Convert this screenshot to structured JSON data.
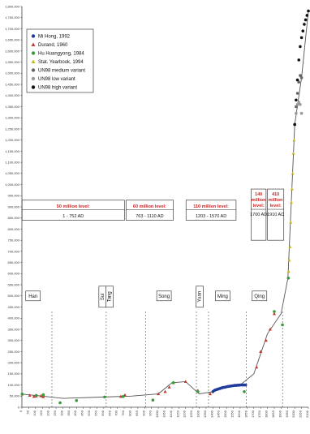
{
  "chart_data": {
    "type": "scatter",
    "x_ticks": [
      "0",
      "50",
      "100",
      "150",
      "200",
      "250",
      "300",
      "350",
      "400",
      "450",
      "500",
      "550",
      "600",
      "650",
      "700",
      "750",
      "800",
      "850",
      "900",
      "950",
      "1000",
      "1050",
      "1100",
      "1150",
      "1200",
      "1250",
      "1300",
      "1350",
      "1400",
      "1450",
      "1500",
      "1550",
      "1600",
      "1650",
      "1700",
      "1750",
      "1800",
      "1850",
      "1900",
      "1950",
      "2000",
      "2050",
      "2100"
    ],
    "xlim": [
      0,
      2100
    ],
    "ylim": [
      0,
      1800000
    ],
    "y_ticks": [
      "0",
      "50,000",
      "100,000",
      "150,000",
      "200,000",
      "250,000",
      "300,000",
      "350,000",
      "400,000",
      "450,000",
      "500,000",
      "550,000",
      "600,000",
      "650,000",
      "700,000",
      "750,000",
      "800,000",
      "850,000",
      "900,000",
      "950,000",
      "1,000,000",
      "1,050,000",
      "1,100,000",
      "1,150,000",
      "1,200,000",
      "1,250,000",
      "1,300,000",
      "1,350,000",
      "1,400,000",
      "1,450,000",
      "1,500,000",
      "1,550,000",
      "1,600,000",
      "1,650,000",
      "1,700,000",
      "1,750,000",
      "1,800,000"
    ],
    "grid": false,
    "legend_position": "top-left",
    "legend": [
      {
        "label": "Mi Hong, 1992",
        "marker": "circle",
        "color": "#1f3b9c"
      },
      {
        "label": "Durand, 1960",
        "marker": "triangle",
        "color": "#c0392b"
      },
      {
        "label": "Hu Huangyong, 1984",
        "marker": "circle",
        "color": "#3a9a3a"
      },
      {
        "label": "Stat. Yearbook, 1994",
        "marker": "triangle",
        "color": "#c8b820"
      },
      {
        "label": "UN98 medium variant",
        "marker": "circle",
        "color": "#666666"
      },
      {
        "label": "UN98 low variant",
        "marker": "circle",
        "color": "#999999"
      },
      {
        "label": "UN98 high variant",
        "marker": "circle",
        "color": "#111111"
      }
    ],
    "series": [
      {
        "name": "Mi Hong, 1992",
        "color": "#1f3b9c",
        "x": [
          1400,
          1410,
          1420,
          1430,
          1440,
          1450,
          1460,
          1470,
          1480,
          1490,
          1500,
          1510,
          1520,
          1530,
          1540,
          1550,
          1560,
          1570,
          1580,
          1590,
          1600,
          1610,
          1620,
          1630,
          1640
        ],
        "y": [
          70000,
          75000,
          78000,
          80000,
          82000,
          84000,
          86000,
          88000,
          89000,
          90000,
          92000,
          93000,
          94000,
          95000,
          96000,
          97000,
          98000,
          98000,
          99000,
          99000,
          100000,
          100000,
          100000,
          100000,
          100000
        ]
      },
      {
        "name": "Durand, 1960",
        "color": "#c0392b",
        "x": [
          2,
          57,
          88,
          105,
          140,
          156,
          725,
          755,
          1000,
          1050,
          1080,
          1110,
          1200,
          1290,
          1380,
          1720,
          1750,
          1790,
          1820,
          1850
        ],
        "y": [
          59000,
          53000,
          48000,
          50000,
          51000,
          47000,
          48000,
          55000,
          60000,
          70000,
          90000,
          110000,
          115000,
          75000,
          60000,
          180000,
          250000,
          300000,
          350000,
          420000
        ]
      },
      {
        "name": "Hu Huangyong, 1984",
        "color": "#3a9a3a",
        "x": [
          2,
          105,
          157,
          280,
          400,
          606,
          742,
          960,
          1110,
          1290,
          1630,
          1850,
          1910,
          1953
        ],
        "y": [
          59000,
          53000,
          56000,
          20000,
          30000,
          46000,
          48000,
          32000,
          110000,
          70000,
          70000,
          430000,
          370000,
          580000
        ]
      },
      {
        "name": "Stat. Yearbook, 1994",
        "color": "#c8b820",
        "x": [
          1955,
          1960,
          1965,
          1970,
          1975,
          1980,
          1985,
          1990,
          1995
        ],
        "y": [
          610000,
          660000,
          720000,
          830000,
          920000,
          980000,
          1050000,
          1140000,
          1200000
        ]
      },
      {
        "name": "UN98 medium variant",
        "color": "#666666",
        "x": [
          2000,
          2010,
          2020,
          2030,
          2040,
          2050
        ],
        "y": [
          1270000,
          1350000,
          1410000,
          1460000,
          1490000,
          1480000
        ]
      },
      {
        "name": "UN98 low variant",
        "color": "#999999",
        "x": [
          2000,
          2010,
          2020,
          2030,
          2040,
          2050
        ],
        "y": [
          1270000,
          1320000,
          1360000,
          1370000,
          1360000,
          1320000
        ]
      },
      {
        "name": "UN98 high variant",
        "color": "#111111",
        "x": [
          2000,
          2010,
          2020,
          2030,
          2040,
          2050,
          2060,
          2070,
          2080,
          2090,
          2100
        ],
        "y": [
          1270000,
          1380000,
          1470000,
          1560000,
          1620000,
          1660000,
          1690000,
          1720000,
          1740000,
          1760000,
          1780000
        ]
      }
    ],
    "trend_line": {
      "x": [
        0,
        150,
        300,
        600,
        800,
        1000,
        1100,
        1200,
        1300,
        1400,
        1500,
        1600,
        1700,
        1800,
        1900,
        1950,
        2000,
        2050,
        2100
      ],
      "y": [
        59000,
        50000,
        40000,
        46000,
        50000,
        60000,
        110000,
        115000,
        60000,
        70000,
        90000,
        100000,
        150000,
        330000,
        420000,
        580000,
        1270000,
        1480000,
        1780000
      ]
    },
    "level_bands": [
      {
        "title": "50 million level:",
        "range": "1 - 752 AD",
        "x_start": 1,
        "x_end": 752
      },
      {
        "title": "60 million level:",
        "range": "763 - 1110 AD",
        "x_start": 763,
        "x_end": 1110
      },
      {
        "title": "110 million level:",
        "range": "1203 - 1570 AD",
        "x_start": 1203,
        "x_end": 1570
      },
      {
        "title": "140 million level:",
        "range": "1700 AD",
        "x_start": 1680,
        "x_end": 1790
      },
      {
        "title": "410 million level:",
        "range": "1910 AD",
        "x_start": 1800,
        "x_end": 1920
      }
    ],
    "dynasties": [
      {
        "label": "Han",
        "x": 40,
        "boundary": 220,
        "vertical": false
      },
      {
        "label": "Sui",
        "x": 588,
        "boundary": 618,
        "vertical": true
      },
      {
        "label": "Tang",
        "x": 640,
        "boundary": 907,
        "vertical": true
      },
      {
        "label": "Song",
        "x": 1000,
        "boundary": 1279,
        "vertical": false
      },
      {
        "label": "Yuan",
        "x": 1300,
        "boundary": 1368,
        "vertical": true
      },
      {
        "label": "Ming",
        "x": 1430,
        "boundary": 1644,
        "vertical": false
      },
      {
        "label": "Qing",
        "x": 1700,
        "boundary": 1911,
        "vertical": false
      }
    ]
  }
}
